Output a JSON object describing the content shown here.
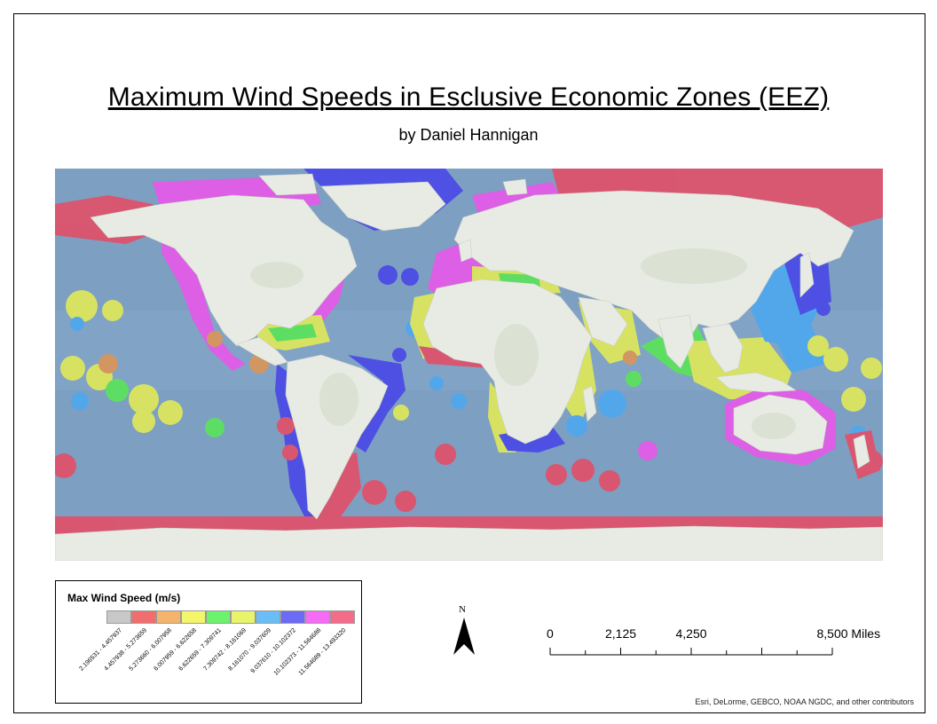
{
  "title": "Maximum Wind Speeds in Esclusive Economic Zones (EEZ)",
  "subtitle": "by Daniel Hannigan",
  "legend": {
    "title": "Max Wind Speed (m/s)",
    "classes": [
      {
        "label": "2.196531 - 4.457937",
        "color": "#c8c8c8"
      },
      {
        "label": "4.457938 - 5.273659",
        "color": "#f26d6d"
      },
      {
        "label": "5.273660 - 6.007958",
        "color": "#f5b36b"
      },
      {
        "label": "6.007959 - 6.622658",
        "color": "#f5f56b"
      },
      {
        "label": "6.622659 - 7.309741",
        "color": "#6df26d"
      },
      {
        "label": "7.309742 - 8.161069",
        "color": "#e8f56b"
      },
      {
        "label": "8.161070 - 9.037609",
        "color": "#6bbdf5"
      },
      {
        "label": "9.037610 - 10.102372",
        "color": "#6b6bf5"
      },
      {
        "label": "10.102373 - 11.564688",
        "color": "#f56bf5"
      },
      {
        "label": "11.564689 - 13.493320",
        "color": "#f56b8a"
      }
    ]
  },
  "north_arrow": {
    "label": "N"
  },
  "scale_bar": {
    "labels": [
      "0",
      "2,125",
      "4,250",
      "8,500 Miles"
    ],
    "values": [
      0,
      2125,
      4250,
      8500
    ],
    "unit": "Miles"
  },
  "credits": "Esri, DeLorme, GEBCO, NOAA NGDC, and other contributors",
  "colors": {
    "ocean": "#7d9fc2",
    "land": "#e8ebe4",
    "eez_high": "#e0506a",
    "eez_magenta": "#e55ae8",
    "eez_blue": "#4a4ae6",
    "eez_lightblue": "#4fa8ee",
    "eez_green": "#5be35b",
    "eez_yellow": "#e0e85a",
    "eez_orange": "#d9955a"
  }
}
